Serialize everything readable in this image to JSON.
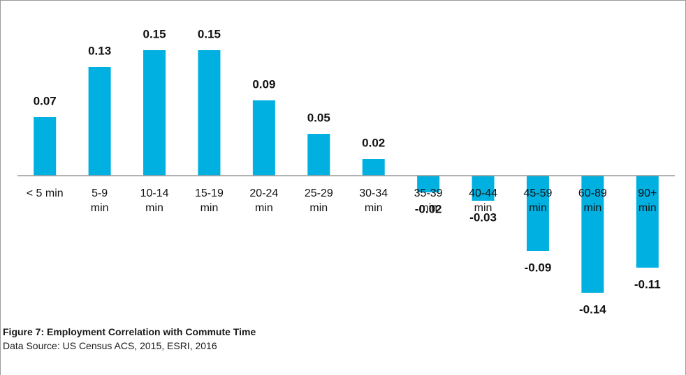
{
  "chart_data": {
    "type": "bar",
    "categories": [
      "< 5 min",
      "5-9 min",
      "10-14 min",
      "15-19 min",
      "20-24 min",
      "25-29 min",
      "30-34 min",
      "35-39 min",
      "40-44 min",
      "45-59 min",
      "60-89 min",
      "90+ min"
    ],
    "values": [
      0.07,
      0.13,
      0.15,
      0.15,
      0.09,
      0.05,
      0.02,
      -0.02,
      -0.03,
      -0.09,
      -0.14,
      -0.11
    ],
    "color": "#00b0e0",
    "caption": {
      "title": "Figure 7: Employment Correlation with Commute Time",
      "source": "Data Source: US Census ACS, 2015, ESRI, 2016"
    }
  }
}
